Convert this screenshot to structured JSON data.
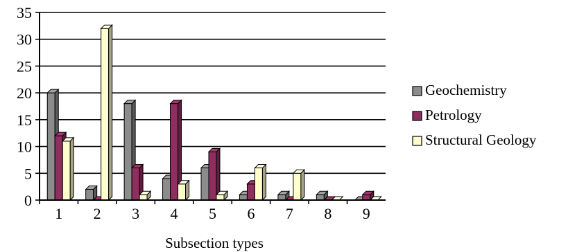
{
  "chart_data": {
    "type": "bar",
    "categories": [
      "1",
      "2",
      "3",
      "4",
      "5",
      "6",
      "7",
      "8",
      "9"
    ],
    "series": [
      {
        "name": "Geochemistry",
        "values": [
          20,
          2,
          18,
          4,
          6,
          1,
          1,
          1,
          0
        ],
        "color": "#8c8c8c"
      },
      {
        "name": "Petrology",
        "values": [
          12,
          0,
          6,
          18,
          9,
          3,
          0,
          0,
          1
        ],
        "color": "#8f2f5f"
      },
      {
        "name": "Structural Geology",
        "values": [
          11,
          32,
          1,
          3,
          1,
          6,
          5,
          0,
          0
        ],
        "color": "#ffffcc"
      }
    ],
    "ylim": [
      0,
      35
    ],
    "yticks": [
      "0",
      "5",
      "10",
      "15",
      "20",
      "25",
      "30",
      "35"
    ],
    "xlabel": "Subsection types",
    "ylabel": "",
    "title": "",
    "grid": true,
    "legend": "right"
  }
}
